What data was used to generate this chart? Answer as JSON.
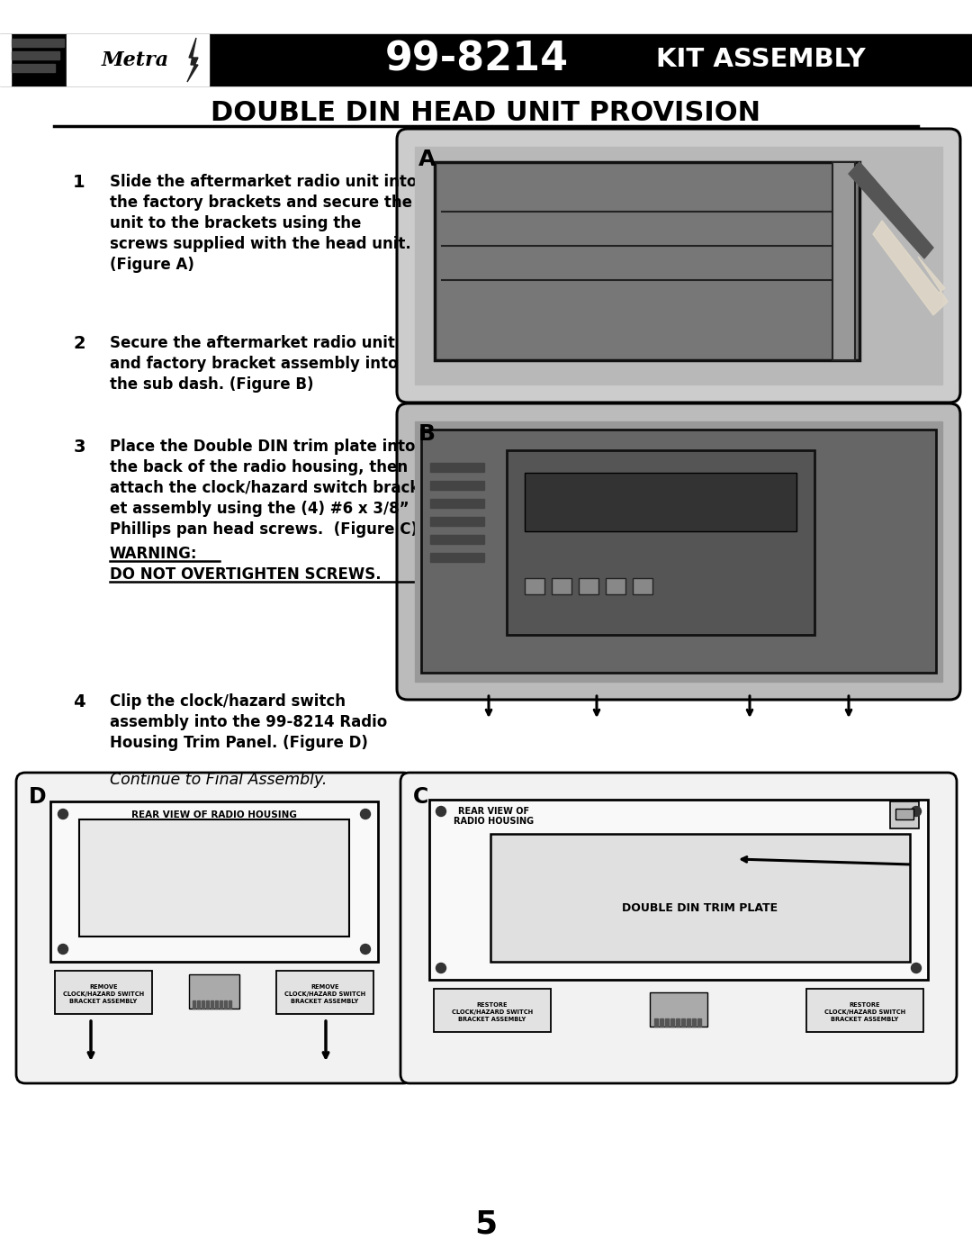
{
  "bg_color": "#ffffff",
  "header_bg": "#000000",
  "header_model": "99-8214",
  "header_kit": "KIT ASSEMBLY",
  "page_title": "DOUBLE DIN HEAD UNIT PROVISION",
  "page_number": "5",
  "step1_num": "1",
  "step1_lines": [
    "Slide the aftermarket radio unit into",
    "the factory brackets and secure the",
    "unit to the brackets using the",
    "screws supplied with the head unit."
  ],
  "step1_bold": "(Figure A)",
  "step2_num": "2",
  "step2_lines": [
    "Secure the aftermarket radio unit",
    "and factory bracket assembly into",
    "the sub dash. (Figure B)"
  ],
  "step3_num": "3",
  "step3_lines": [
    "Place the Double DIN trim plate into",
    "the back of the radio housing, then",
    "attach the clock/hazard switch brack-",
    "et assembly using the (4) #6 x 3/8”",
    "Phillips pan head screws.  (Figure C)"
  ],
  "step3_warn1": "WARNING:",
  "step3_warn2": "DO NOT OVERTIGHTEN SCREWS.",
  "step4_num": "4",
  "step4_lines": [
    "Clip the clock/hazard switch",
    "assembly into the 99-8214 Radio",
    "Housing Trim Panel. (Figure D)"
  ],
  "step4_italic": "Continue to Final Assembly.",
  "fig_d_title": "REAR VIEW OF RADIO HOUSING",
  "fig_c_title1": "REAR VIEW OF",
  "fig_c_title2": "RADIO HOUSING",
  "fig_c_plate": "DOUBLE DIN TRIM PLATE",
  "bracket_remove": "REMOVE\nCLOCK/HAZARD SWITCH\nBRACKET ASSEMBLY",
  "bracket_restore": "RESTORE\nCLOCK/HAZARD SWITCH\nBRACKET ASSEMBLY"
}
